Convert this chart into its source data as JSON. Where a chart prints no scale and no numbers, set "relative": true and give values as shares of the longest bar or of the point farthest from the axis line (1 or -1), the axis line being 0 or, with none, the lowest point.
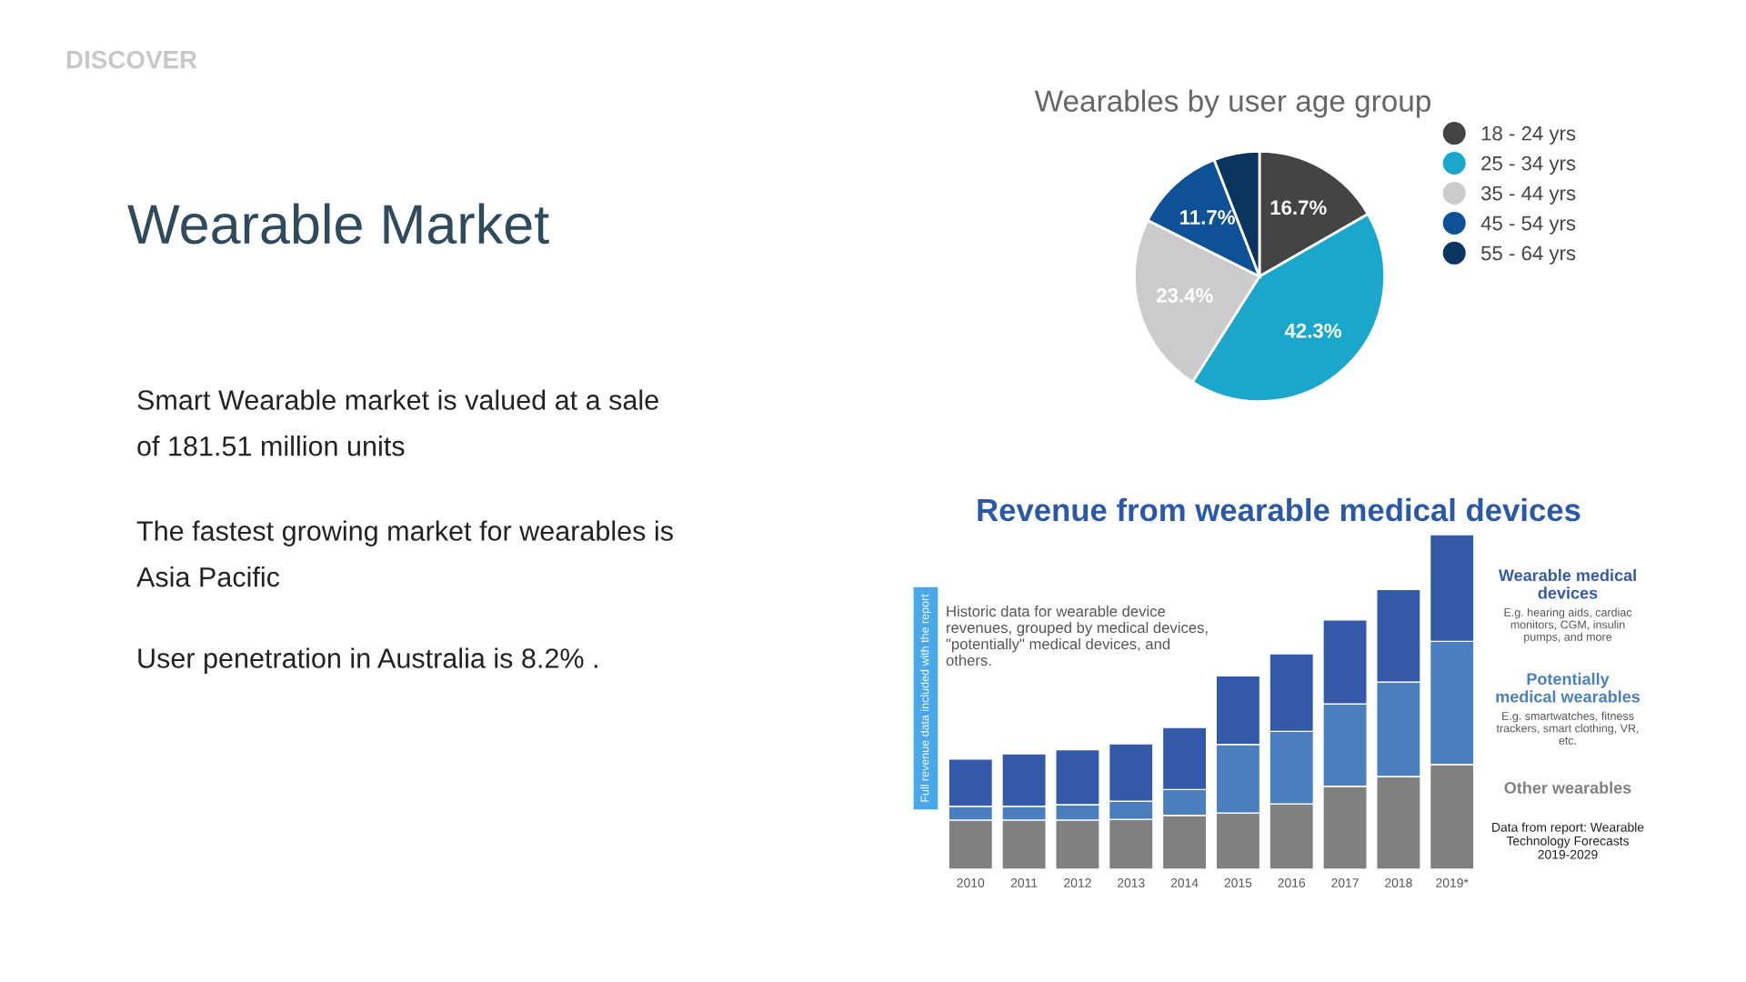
{
  "chart_data": [
    {
      "type": "other",
      "title": "Wearable Market",
      "annotations": [
        "DISCOVER",
        "Smart Wearable market is valued at a sale of 181.51 million units",
        "The fastest growing market for wearables is Asia Pacific",
        "User penetration in Australia is 8.2% ."
      ]
    },
    {
      "type": "pie",
      "title": "Wearables by user age group",
      "categories": [
        "18 - 24 yrs",
        "25 - 34 yrs",
        "35 - 44 yrs",
        "45 - 54 yrs",
        "55 - 64 yrs"
      ],
      "values": [
        16.7,
        42.3,
        23.4,
        11.7,
        5.9
      ],
      "value_labels": [
        "16.7%",
        "42.3%",
        "23.4%",
        "11.7%",
        null
      ],
      "colors": [
        "#444444",
        "#1ba7cc",
        "#cccccc",
        "#0f5196",
        "#0b355e"
      ],
      "legend": "right"
    },
    {
      "type": "bar",
      "stacked": true,
      "relative": true,
      "title": "Revenue from wearable medical devices",
      "subtitle": "Historic data for wearable device revenues, grouped by medical devices, \"potentially\" medical devices, and others.",
      "categories": [
        "2010",
        "2011",
        "2012",
        "2013",
        "2014",
        "2015",
        "2016",
        "2017",
        "2018",
        "2019*"
      ],
      "series": [
        {
          "name": "Other wearables",
          "color": "#808080",
          "values": [
            0.147,
            0.147,
            0.147,
            0.149,
            0.161,
            0.168,
            0.195,
            0.248,
            0.277,
            0.313
          ]
        },
        {
          "name": "Potentially medical wearables",
          "color": "#4a7fbf",
          "values": [
            0.041,
            0.041,
            0.046,
            0.054,
            0.077,
            0.205,
            0.217,
            0.246,
            0.282,
            0.368
          ]
        },
        {
          "name": "Wearable medical devices",
          "color": "#3459a8",
          "values": [
            0.141,
            0.157,
            0.164,
            0.172,
            0.186,
            0.205,
            0.232,
            0.251,
            0.277,
            0.319
          ]
        }
      ],
      "legend": "right",
      "annotations": [
        "Full revenue data included with the report",
        "E.g. hearing aids, cardiac monitors, CGM, insulin pumps, and more",
        "E.g. smartwatches, fitness trackers, smart clothing, VR, etc.",
        "Data from report: Wearable Technology Forecasts 2019-2029"
      ]
    }
  ]
}
